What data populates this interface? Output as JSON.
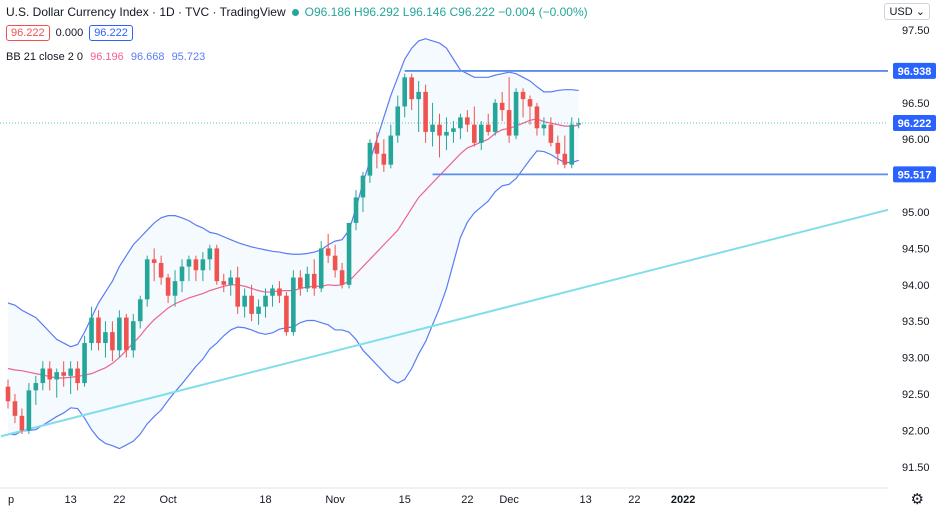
{
  "header": {
    "title": "U.S. Dollar Currency Index · 1D · TVC · TradingView",
    "open": "O96.186",
    "high": "H96.292",
    "low": "L96.146",
    "close": "C96.222",
    "change": "−0.004 (−0.00%)",
    "price_box_1": "96.222",
    "spread": "0.000",
    "price_box_2": "96.222"
  },
  "indicator": {
    "label": "BB 21 close 2 0",
    "basis": "96.196",
    "upper": "96.668",
    "lower": "95.723"
  },
  "currency_button": "USD",
  "colors": {
    "up": "#26a69a",
    "down": "#ef5350",
    "basis": "#f06292",
    "bands": "#5b7cf5",
    "band_fill": "rgba(33,150,243,0.05)",
    "trendline": "#80deea",
    "hline": "#5b8def",
    "label_bg": "#2962ff"
  },
  "chart_data": {
    "type": "candlestick",
    "title": "U.S. Dollar Currency Index · 1D · TVC · TradingView",
    "ylim": [
      91.25,
      97.65
    ],
    "yticks": [
      "91.50",
      "92.00",
      "92.50",
      "93.00",
      "93.50",
      "94.00",
      "94.50",
      "95.00",
      "95.50",
      "96.00",
      "96.50",
      "97.00",
      "97.50"
    ],
    "xlim": [
      0,
      82
    ],
    "xticks": [
      {
        "i": 0,
        "label": "p"
      },
      {
        "i": 9,
        "label": "13"
      },
      {
        "i": 16,
        "label": "22"
      },
      {
        "i": 23,
        "label": "Oct"
      },
      {
        "i": 37,
        "label": "18"
      },
      {
        "i": 47,
        "label": "Nov"
      },
      {
        "i": 57,
        "label": "15"
      },
      {
        "i": 66,
        "label": "22"
      },
      {
        "i": 72,
        "label": "Dec"
      },
      {
        "i": 83,
        "label": "13"
      },
      {
        "i": 90,
        "label": "22"
      },
      {
        "i": 97,
        "label": "2022"
      }
    ],
    "candles": [
      [
        92.6,
        92.7,
        92.3,
        92.4
      ],
      [
        92.4,
        92.5,
        92.1,
        92.2
      ],
      [
        92.2,
        92.3,
        91.95,
        92.0
      ],
      [
        92.0,
        92.65,
        91.95,
        92.55
      ],
      [
        92.55,
        92.75,
        92.35,
        92.65
      ],
      [
        92.65,
        92.95,
        92.55,
        92.85
      ],
      [
        92.85,
        92.95,
        92.55,
        92.7
      ],
      [
        92.7,
        92.85,
        92.45,
        92.8
      ],
      [
        92.8,
        92.95,
        92.6,
        92.75
      ],
      [
        92.75,
        92.95,
        92.5,
        92.85
      ],
      [
        92.85,
        92.95,
        92.55,
        92.65
      ],
      [
        92.65,
        93.3,
        92.6,
        93.2
      ],
      [
        93.2,
        93.7,
        93.1,
        93.55
      ],
      [
        93.55,
        93.65,
        93.1,
        93.2
      ],
      [
        93.2,
        93.5,
        93.0,
        93.35
      ],
      [
        93.35,
        93.5,
        92.95,
        93.1
      ],
      [
        93.1,
        93.65,
        93.0,
        93.55
      ],
      [
        93.55,
        93.6,
        93.0,
        93.1
      ],
      [
        93.1,
        93.6,
        93.0,
        93.5
      ],
      [
        93.5,
        93.85,
        93.4,
        93.8
      ],
      [
        93.8,
        94.4,
        93.7,
        94.35
      ],
      [
        94.35,
        94.5,
        94.05,
        94.3
      ],
      [
        94.3,
        94.4,
        94.0,
        94.1
      ],
      [
        94.1,
        94.15,
        93.75,
        93.85
      ],
      [
        93.85,
        94.2,
        93.7,
        94.05
      ],
      [
        94.05,
        94.35,
        93.9,
        94.25
      ],
      [
        94.25,
        94.4,
        94.05,
        94.35
      ],
      [
        94.35,
        94.4,
        94.05,
        94.2
      ],
      [
        94.2,
        94.45,
        94.05,
        94.35
      ],
      [
        94.35,
        94.55,
        94.2,
        94.5
      ],
      [
        94.5,
        94.55,
        94.0,
        94.05
      ],
      [
        94.05,
        94.15,
        93.9,
        94.0
      ],
      [
        94.0,
        94.2,
        93.85,
        94.1
      ],
      [
        94.1,
        94.25,
        93.6,
        93.7
      ],
      [
        93.7,
        93.95,
        93.55,
        93.85
      ],
      [
        93.85,
        94.0,
        93.5,
        93.6
      ],
      [
        93.6,
        93.8,
        93.45,
        93.7
      ],
      [
        93.7,
        93.95,
        93.55,
        93.85
      ],
      [
        93.85,
        94.0,
        93.7,
        93.95
      ],
      [
        93.95,
        94.05,
        93.75,
        93.85
      ],
      [
        93.85,
        93.9,
        93.3,
        93.35
      ],
      [
        93.35,
        94.2,
        93.3,
        94.1
      ],
      [
        94.1,
        94.2,
        93.85,
        93.95
      ],
      [
        93.95,
        94.25,
        93.9,
        94.15
      ],
      [
        94.15,
        94.35,
        93.85,
        93.95
      ],
      [
        93.95,
        94.6,
        93.9,
        94.5
      ],
      [
        94.5,
        94.7,
        94.3,
        94.4
      ],
      [
        94.4,
        94.55,
        94.1,
        94.2
      ],
      [
        94.2,
        94.3,
        93.95,
        94.0
      ],
      [
        94.0,
        94.85,
        93.95,
        94.85
      ],
      [
        94.85,
        95.3,
        94.75,
        95.2
      ],
      [
        95.2,
        95.55,
        95.0,
        95.5
      ],
      [
        95.5,
        96.0,
        95.4,
        95.95
      ],
      [
        95.95,
        96.1,
        95.6,
        95.8
      ],
      [
        95.8,
        96.0,
        95.55,
        95.65
      ],
      [
        95.65,
        96.2,
        95.6,
        96.05
      ],
      [
        96.05,
        96.6,
        95.95,
        96.45
      ],
      [
        96.45,
        96.9,
        96.3,
        96.85
      ],
      [
        96.85,
        96.9,
        96.4,
        96.55
      ],
      [
        96.55,
        96.8,
        96.1,
        96.65
      ],
      [
        96.65,
        96.75,
        95.95,
        96.1
      ],
      [
        96.1,
        96.5,
        95.9,
        96.2
      ],
      [
        96.2,
        96.35,
        95.75,
        96.05
      ],
      [
        96.05,
        96.3,
        95.85,
        96.1
      ],
      [
        96.1,
        96.25,
        95.95,
        96.15
      ],
      [
        96.15,
        96.35,
        96.0,
        96.3
      ],
      [
        96.3,
        96.4,
        96.1,
        96.2
      ],
      [
        96.2,
        96.45,
        95.9,
        95.95
      ],
      [
        95.95,
        96.25,
        95.85,
        96.2
      ],
      [
        96.2,
        96.35,
        96.05,
        96.1
      ],
      [
        96.1,
        96.55,
        96.05,
        96.5
      ],
      [
        96.5,
        96.65,
        96.25,
        96.4
      ],
      [
        96.4,
        96.85,
        95.95,
        96.05
      ],
      [
        96.05,
        96.7,
        96.0,
        96.65
      ],
      [
        96.65,
        96.7,
        96.3,
        96.55
      ],
      [
        96.55,
        96.6,
        96.2,
        96.45
      ],
      [
        96.45,
        96.5,
        96.05,
        96.15
      ],
      [
        96.15,
        96.3,
        96.05,
        96.2
      ],
      [
        96.2,
        96.3,
        95.9,
        95.95
      ],
      [
        95.95,
        96.05,
        95.65,
        95.8
      ],
      [
        95.8,
        96.05,
        95.6,
        95.65
      ],
      [
        95.65,
        96.3,
        95.6,
        96.2
      ],
      [
        96.2,
        96.29,
        96.15,
        96.22
      ]
    ],
    "bollinger": {
      "length": 21,
      "source": "close",
      "stddev": 2,
      "basis": [
        92.85,
        92.83,
        92.82,
        92.8,
        92.78,
        92.76,
        92.74,
        92.72,
        92.72,
        92.73,
        92.74,
        92.76,
        92.78,
        92.82,
        92.86,
        92.92,
        93.0,
        93.1,
        93.2,
        93.3,
        93.42,
        93.52,
        93.6,
        93.68,
        93.74,
        93.78,
        93.82,
        93.85,
        93.88,
        93.92,
        93.95,
        93.98,
        94.0,
        94.0,
        93.98,
        93.95,
        93.92,
        93.9,
        93.9,
        93.92,
        93.92,
        93.92,
        93.95,
        93.97,
        93.98,
        93.98,
        94.0,
        93.99,
        94.0,
        94.05,
        94.15,
        94.25,
        94.35,
        94.45,
        94.55,
        94.65,
        94.75,
        94.9,
        95.05,
        95.2,
        95.3,
        95.4,
        95.5,
        95.6,
        95.7,
        95.8,
        95.88,
        95.92,
        95.96,
        96.0,
        96.08,
        96.13,
        96.15,
        96.18,
        96.22,
        96.26,
        96.28,
        96.24,
        96.22,
        96.2,
        96.18,
        96.18,
        96.19
      ],
      "upper": [
        93.75,
        93.72,
        93.65,
        93.6,
        93.55,
        93.45,
        93.35,
        93.25,
        93.2,
        93.15,
        93.18,
        93.35,
        93.55,
        93.75,
        93.9,
        94.05,
        94.25,
        94.4,
        94.55,
        94.65,
        94.75,
        94.85,
        94.92,
        94.95,
        94.95,
        94.92,
        94.88,
        94.82,
        94.78,
        94.72,
        94.7,
        94.66,
        94.62,
        94.58,
        94.55,
        94.52,
        94.5,
        94.48,
        94.46,
        94.45,
        94.43,
        94.42,
        94.42,
        94.43,
        94.45,
        94.48,
        94.55,
        94.6,
        94.62,
        94.75,
        95.05,
        95.4,
        95.7,
        96.0,
        96.3,
        96.6,
        96.85,
        97.1,
        97.25,
        97.35,
        97.38,
        97.35,
        97.32,
        97.25,
        97.1,
        96.95,
        96.9,
        96.85,
        96.85,
        96.85,
        96.88,
        96.9,
        96.92,
        96.9,
        96.85,
        96.8,
        96.72,
        96.65,
        96.65,
        96.67,
        96.68,
        96.68,
        96.67
      ],
      "lower": [
        91.95,
        91.94,
        91.99,
        92.0,
        92.01,
        92.07,
        92.13,
        92.19,
        92.24,
        92.31,
        92.3,
        92.17,
        92.01,
        91.89,
        91.82,
        91.79,
        91.75,
        91.8,
        91.85,
        91.95,
        92.09,
        92.19,
        92.28,
        92.41,
        92.53,
        92.64,
        92.76,
        92.88,
        92.98,
        93.12,
        93.2,
        93.3,
        93.38,
        93.42,
        93.41,
        93.38,
        93.34,
        93.32,
        93.34,
        93.39,
        93.41,
        93.42,
        93.48,
        93.51,
        93.51,
        93.48,
        93.45,
        93.38,
        93.38,
        93.35,
        93.25,
        93.1,
        93.0,
        92.9,
        92.8,
        92.7,
        92.65,
        92.7,
        92.85,
        93.05,
        93.22,
        93.45,
        93.68,
        93.95,
        94.3,
        94.65,
        94.86,
        94.99,
        95.07,
        95.15,
        95.28,
        95.36,
        95.38,
        95.46,
        95.59,
        95.72,
        95.84,
        95.83,
        95.79,
        95.73,
        95.68,
        95.68,
        95.71
      ]
    },
    "hlines": [
      {
        "y": 96.938,
        "label": "96.938",
        "from": 57
      },
      {
        "y": 95.517,
        "label": "95.517",
        "from": 61
      }
    ],
    "trendline": {
      "from": [
        -1,
        91.92
      ],
      "to": [
        90,
        95.03
      ]
    },
    "last_price": {
      "y": 96.222,
      "label": "96.222"
    }
  }
}
